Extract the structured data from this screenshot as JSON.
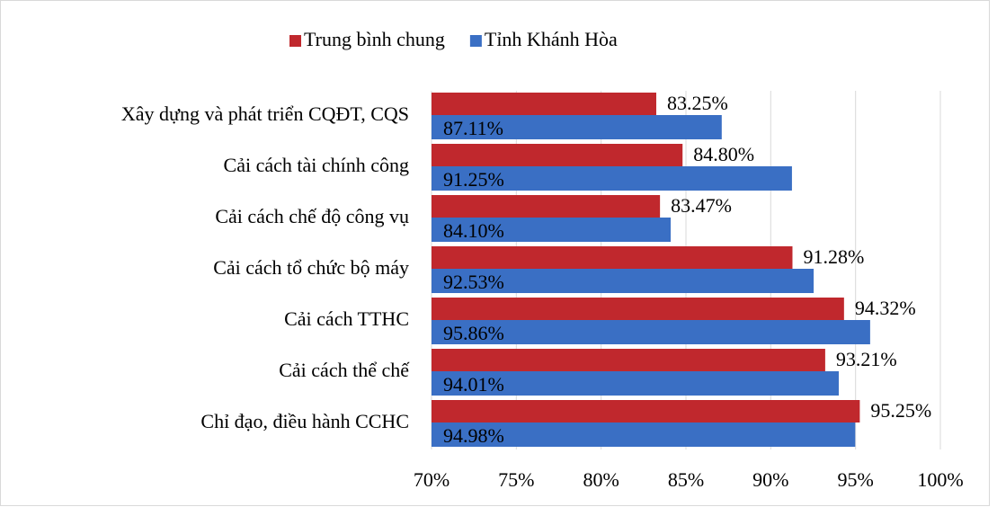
{
  "chart_data": {
    "type": "bar",
    "orientation": "horizontal",
    "categories": [
      "Xây dựng và phát triển CQĐT, CQS",
      "Cải cách tài chính công",
      "Cải cách chế độ công vụ",
      "Cải cách tổ chức bộ máy",
      "Cải cách TTHC",
      "Cải cách thể chế",
      "Chỉ đạo, điều hành CCHC"
    ],
    "series": [
      {
        "name": "Trung bình chung",
        "color": "#c0282d",
        "values": [
          83.25,
          84.8,
          83.47,
          91.28,
          94.32,
          93.21,
          95.25
        ],
        "value_labels": [
          "83.25%",
          "84.80%",
          "83.47%",
          "91.28%",
          "94.32%",
          "93.21%",
          "95.25%"
        ]
      },
      {
        "name": "Tỉnh Khánh Hòa",
        "color": "#3a6fc4",
        "values": [
          87.11,
          91.25,
          84.1,
          92.53,
          95.86,
          94.01,
          94.98
        ],
        "value_labels": [
          "87.11%",
          "91.25%",
          "84.10%",
          "92.53%",
          "95.86%",
          "94.01%",
          "94.98%"
        ]
      }
    ],
    "xlim": [
      70,
      100
    ],
    "xticks": [
      {
        "value": 70,
        "label": "70%"
      },
      {
        "value": 75,
        "label": "75%"
      },
      {
        "value": 80,
        "label": "80%"
      },
      {
        "value": 85,
        "label": "85%"
      },
      {
        "value": 90,
        "label": "90%"
      },
      {
        "value": 95,
        "label": "95%"
      },
      {
        "value": 100,
        "label": "100%"
      }
    ],
    "grid": true,
    "legend": "top"
  }
}
